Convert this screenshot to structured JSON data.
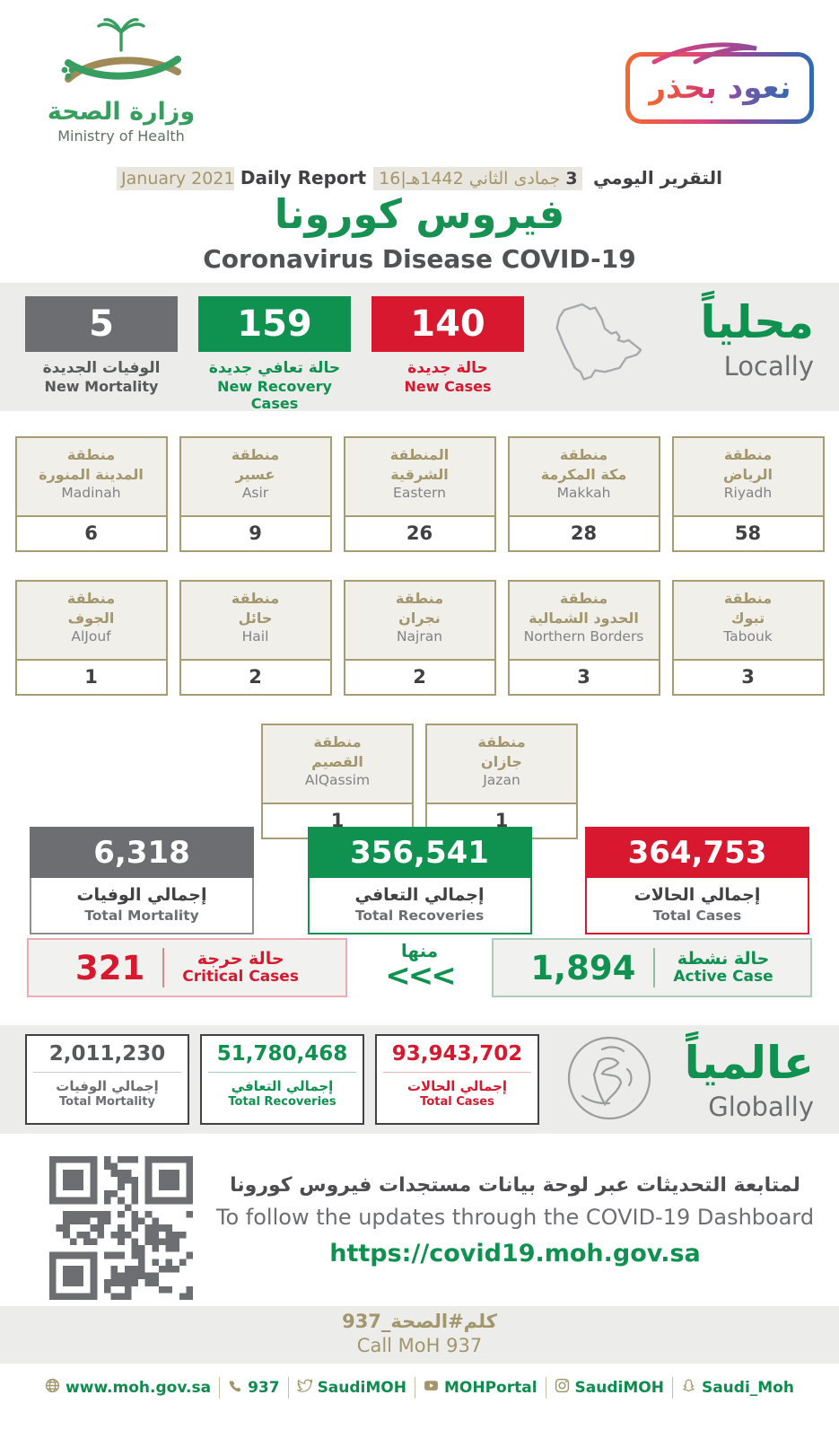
{
  "colors": {
    "green": "#0f9150",
    "red": "#d7182e",
    "gray": "#6d6e71",
    "gold": "#a3966c",
    "band": "#ececea",
    "badge_orange": "#f26a2e",
    "badge_blue": "#2e6bb2"
  },
  "header": {
    "logo": {
      "title_ar": "وزارة الصحة",
      "title_en": "Ministry of Health"
    },
    "badge_text": "نعود بحذر",
    "report_title_ar": "التقرير اليومي",
    "report_date_day": "3",
    "report_date_rest": " جمادى الثاني 1442هـ|16 January 2021",
    "report_title_en": "Daily Report",
    "title_ar": "فيروس كورونا",
    "title_en": "Coronavirus Disease COVID-19"
  },
  "locally": {
    "title_ar": "محلياً",
    "title_en": "Locally",
    "stats": [
      {
        "value": "5",
        "label_ar": "الوفيات الجديدة",
        "label_en": "New Mortality"
      },
      {
        "value": "159",
        "label_ar": "حالة تعافي جديدة",
        "label_en": "New Recovery Cases"
      },
      {
        "value": "140",
        "label_ar": "حالة جديدة",
        "label_en": "New Cases"
      }
    ]
  },
  "regions": {
    "rows": [
      [
        {
          "ar_top": "منطقة",
          "ar_bottom": "المدينة المنورة",
          "en": "Madinah",
          "value": "6"
        },
        {
          "ar_top": "منطقة",
          "ar_bottom": "عسير",
          "en": "Asir",
          "value": "9"
        },
        {
          "ar_top": "المنطقة",
          "ar_bottom": "الشرقية",
          "en": "Eastern",
          "value": "26"
        },
        {
          "ar_top": "منطقة",
          "ar_bottom": "مكة المكرمة",
          "en": "Makkah",
          "value": "28"
        },
        {
          "ar_top": "منطقة",
          "ar_bottom": "الرياض",
          "en": "Riyadh",
          "value": "58"
        }
      ],
      [
        {
          "ar_top": "منطقة",
          "ar_bottom": "الجوف",
          "en": "AlJouf",
          "value": "1"
        },
        {
          "ar_top": "منطقة",
          "ar_bottom": "حائل",
          "en": "Hail",
          "value": "2"
        },
        {
          "ar_top": "منطقة",
          "ar_bottom": "نجران",
          "en": "Najran",
          "value": "2"
        },
        {
          "ar_top": "منطقة",
          "ar_bottom": "الحدود الشمالية",
          "en": "Northern Borders",
          "value": "3"
        },
        {
          "ar_top": "منطقة",
          "ar_bottom": "تبوك",
          "en": "Tabouk",
          "value": "3"
        }
      ],
      [
        {
          "ar_top": "منطقة",
          "ar_bottom": "القصيم",
          "en": "AlQassim",
          "value": "1"
        },
        {
          "ar_top": "منطقة",
          "ar_bottom": "جازان",
          "en": "Jazan",
          "value": "1"
        }
      ]
    ]
  },
  "totals": [
    {
      "value": "6,318",
      "label_ar": "إجمالي الوفيات",
      "label_en": "Total Mortality"
    },
    {
      "value": "356,541",
      "label_ar": "إجمالي التعافي",
      "label_en": "Total Recoveries"
    },
    {
      "value": "364,753",
      "label_ar": "إجمالي الحالات",
      "label_en": "Total Cases"
    }
  ],
  "summary": {
    "critical": {
      "value": "321",
      "label_ar": "حالة حرجة",
      "label_en": "Critical Cases"
    },
    "of_which": "منها",
    "arrows": "<<<",
    "active": {
      "value": "1,894",
      "label_ar": "حالة نشطة",
      "label_en": "Active Case"
    }
  },
  "globally": {
    "title_ar": "عالمياً",
    "title_en": "Globally",
    "stats": [
      {
        "value": "2,011,230",
        "label_ar": "إجمالي الوفيات",
        "label_en": "Total Mortality"
      },
      {
        "value": "51,780,468",
        "label_ar": "إجمالي التعافي",
        "label_en": "Total Recoveries"
      },
      {
        "value": "93,943,702",
        "label_ar": "إجمالي الحالات",
        "label_en": "Total Cases"
      }
    ]
  },
  "dashboard": {
    "line_ar": "لمتابعة التحديثات عبر لوحة بيانات مستجدات فيروس كورونا",
    "line_en": "To follow the updates through the COVID-19 Dashboard",
    "url": "https://covid19.moh.gov.sa"
  },
  "call": {
    "line_ar": "كلم#الصحة_937",
    "line_en": "Call MoH 937"
  },
  "footer": {
    "items": [
      {
        "icon": "globe-icon",
        "label": "www.moh.gov.sa"
      },
      {
        "icon": "phone-icon",
        "label": "937"
      },
      {
        "icon": "twitter-icon",
        "label": "SaudiMOH"
      },
      {
        "icon": "youtube-icon",
        "label": "MOHPortal"
      },
      {
        "icon": "instagram-icon",
        "label": "SaudiMOH"
      },
      {
        "icon": "snapchat-icon",
        "label": "Saudi_Moh"
      }
    ]
  }
}
